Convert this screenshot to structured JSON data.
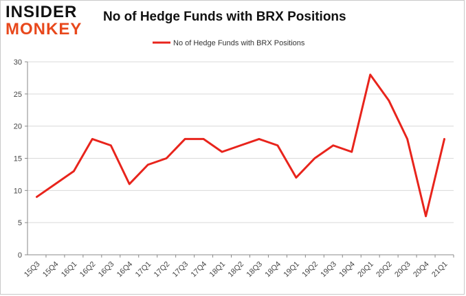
{
  "header": {
    "logo_top": "INSIDER",
    "logo_bottom": "MONKEY",
    "title": "No of Hedge Funds with BRX Positions"
  },
  "colors": {
    "line": "#e8241c",
    "logo_accent": "#e8481c",
    "grid": "#d9d9d9",
    "axis": "#888888"
  },
  "chart_data": {
    "type": "line",
    "title": "No of Hedge Funds with BRX Positions",
    "xlabel": "",
    "ylabel": "",
    "ylim": [
      0,
      30
    ],
    "yticks": [
      0,
      5,
      10,
      15,
      20,
      25,
      30
    ],
    "grid": "horizontal",
    "legend_position": "top-center",
    "categories": [
      "15Q3",
      "15Q4",
      "16Q1",
      "16Q2",
      "16Q3",
      "16Q4",
      "17Q1",
      "17Q2",
      "17Q3",
      "17Q4",
      "18Q1",
      "18Q2",
      "18Q3",
      "18Q4",
      "19Q1",
      "19Q2",
      "19Q3",
      "19Q4",
      "20Q1",
      "20Q2",
      "20Q3",
      "20Q4",
      "21Q1"
    ],
    "series": [
      {
        "name": "No of Hedge Funds with BRX Positions",
        "values": [
          9,
          11,
          13,
          18,
          17,
          11,
          14,
          15,
          18,
          18,
          16,
          17,
          18,
          17,
          12,
          15,
          17,
          16,
          28,
          24,
          18,
          6,
          18
        ]
      }
    ]
  }
}
